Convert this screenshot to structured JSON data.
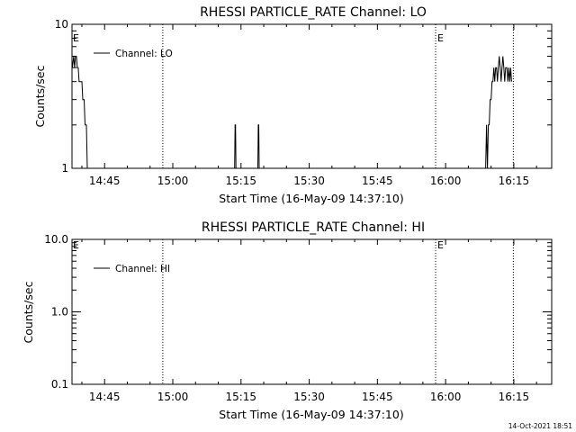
{
  "chart_data": [
    {
      "type": "line",
      "title": "RHESSI  PARTICLE_RATE  Channel:  LO",
      "xlabel": "Start Time (16-May-09 14:37:10)",
      "ylabel": "Counts/sec",
      "y_scale": "log",
      "xlim": [
        -7.17,
        98.33
      ],
      "ylim": [
        1,
        10
      ],
      "x_unit": "minutes after 14:45",
      "x_ticks": [
        {
          "x": 0,
          "label": "14:45"
        },
        {
          "x": 15,
          "label": "15:00"
        },
        {
          "x": 30,
          "label": "15:15"
        },
        {
          "x": 45,
          "label": "15:30"
        },
        {
          "x": 60,
          "label": "15:45"
        },
        {
          "x": 75,
          "label": "16:00"
        },
        {
          "x": 90,
          "label": "16:15"
        }
      ],
      "y_ticks": [
        {
          "y": 1,
          "label": "1"
        },
        {
          "y": 10,
          "label": "10"
        }
      ],
      "y_minor_ticks": [
        2,
        3,
        4,
        5,
        6,
        7,
        8,
        9
      ],
      "legend": {
        "position": "top-left",
        "label": "Channel: LO"
      },
      "event_lines": [
        {
          "x": 12.8,
          "label": ""
        },
        {
          "x": 72.8,
          "label": "E"
        },
        {
          "x": 89.9,
          "label": ""
        }
      ],
      "left_edge_label": "E",
      "series": [
        {
          "name": "Channel: LO",
          "points": [
            [
              -7.1,
              5
            ],
            [
              -6.8,
              6
            ],
            [
              -6.6,
              5
            ],
            [
              -6.4,
              6
            ],
            [
              -6.2,
              6
            ],
            [
              -6.0,
              5
            ],
            [
              -5.8,
              5
            ],
            [
              -5.6,
              4
            ],
            [
              -5.2,
              4
            ],
            [
              -5.0,
              4
            ],
            [
              -4.8,
              3
            ],
            [
              -4.5,
              3
            ],
            [
              -4.3,
              2
            ],
            [
              -4.0,
              2
            ],
            [
              -3.8,
              1
            ],
            [
              -3.0,
              1
            ],
            [
              28.6,
              1
            ],
            [
              28.7,
              2
            ],
            [
              28.8,
              2
            ],
            [
              28.9,
              1
            ],
            [
              33.7,
              1
            ],
            [
              33.8,
              2
            ],
            [
              33.9,
              2
            ],
            [
              34.0,
              1
            ],
            [
              83.8,
              1
            ],
            [
              84.0,
              2
            ],
            [
              84.2,
              1
            ],
            [
              84.4,
              2
            ],
            [
              84.6,
              2
            ],
            [
              84.8,
              3
            ],
            [
              85.0,
              3
            ],
            [
              85.2,
              4
            ],
            [
              85.4,
              4
            ],
            [
              85.6,
              5
            ],
            [
              85.8,
              4
            ],
            [
              86.0,
              5
            ],
            [
              86.2,
              5
            ],
            [
              86.4,
              4
            ],
            [
              86.6,
              5
            ],
            [
              86.8,
              6
            ],
            [
              87.0,
              5
            ],
            [
              87.2,
              4
            ],
            [
              87.4,
              5
            ],
            [
              87.6,
              6
            ],
            [
              87.8,
              5
            ],
            [
              88.0,
              4
            ],
            [
              88.2,
              5
            ],
            [
              88.5,
              5
            ],
            [
              88.7,
              4
            ],
            [
              88.9,
              5
            ],
            [
              89.1,
              4
            ],
            [
              89.3,
              5
            ],
            [
              89.5,
              4
            ]
          ]
        }
      ]
    },
    {
      "type": "line",
      "title": "RHESSI  PARTICLE_RATE  Channel:  HI",
      "xlabel": "Start Time (16-May-09 14:37:10)",
      "ylabel": "Counts/sec",
      "y_scale": "log",
      "xlim": [
        -7.17,
        98.33
      ],
      "ylim": [
        0.1,
        10
      ],
      "x_unit": "minutes after 14:45",
      "x_ticks": [
        {
          "x": 0,
          "label": "14:45"
        },
        {
          "x": 15,
          "label": "15:00"
        },
        {
          "x": 30,
          "label": "15:15"
        },
        {
          "x": 45,
          "label": "15:30"
        },
        {
          "x": 60,
          "label": "15:45"
        },
        {
          "x": 75,
          "label": "16:00"
        },
        {
          "x": 90,
          "label": "16:15"
        }
      ],
      "y_ticks": [
        {
          "y": 0.1,
          "label": "0.1"
        },
        {
          "y": 1,
          "label": "1.0"
        },
        {
          "y": 10,
          "label": "10.0"
        }
      ],
      "y_minor_ticks": [
        0.2,
        0.3,
        0.4,
        0.5,
        0.6,
        0.7,
        0.8,
        0.9,
        2,
        3,
        4,
        5,
        6,
        7,
        8,
        9
      ],
      "legend": {
        "position": "top-left",
        "label": "Channel: HI"
      },
      "event_lines": [
        {
          "x": 12.8,
          "label": ""
        },
        {
          "x": 72.8,
          "label": "E"
        },
        {
          "x": 89.9,
          "label": ""
        }
      ],
      "left_edge_label": "E",
      "series": [
        {
          "name": "Channel: HI",
          "points": []
        }
      ]
    }
  ],
  "footer": {
    "timestamp": "14-Oct-2021 18:51"
  }
}
